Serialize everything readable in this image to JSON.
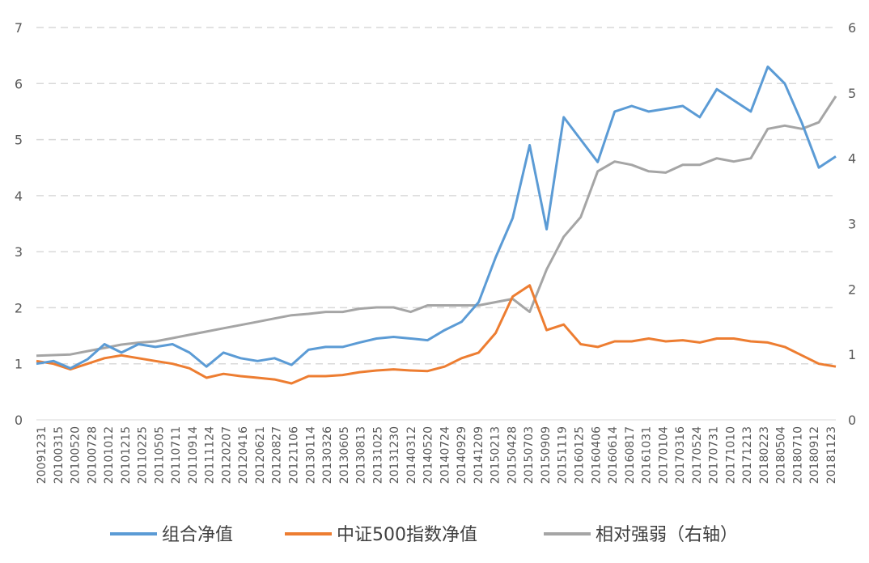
{
  "chart_data": {
    "type": "line",
    "title": "",
    "xlabel": "",
    "ylabel": "",
    "y_left": {
      "min": 0,
      "max": 7,
      "ticks": [
        "0",
        "1",
        "2",
        "3",
        "4",
        "5",
        "6",
        "7"
      ]
    },
    "y_right": {
      "min": 0,
      "max": 6,
      "ticks": [
        "0",
        "1",
        "2",
        "3",
        "4",
        "5",
        "6"
      ]
    },
    "grid": "horizontal dashed",
    "legend_position": "bottom",
    "x_tick_labels": [
      "20091231",
      "20100315",
      "20100520",
      "20100728",
      "20101012",
      "20101215",
      "20110225",
      "20110505",
      "20110711",
      "20110914",
      "20111124",
      "20120207",
      "20120416",
      "20120621",
      "20120827",
      "20121106",
      "20130114",
      "20130326",
      "20130605",
      "20130813",
      "20131025",
      "20131230",
      "20140312",
      "20140520",
      "20140724",
      "20140929",
      "20141209",
      "20150213",
      "20150428",
      "20150703",
      "20150909",
      "20151119",
      "20160125",
      "20160406",
      "20160614",
      "20160817",
      "20161031",
      "20170104",
      "20170316",
      "20170524",
      "20170731",
      "20171010",
      "20171213",
      "20180223",
      "20180504",
      "20180710",
      "20180912",
      "20181123"
    ],
    "series": [
      {
        "name": "组合净值",
        "axis": "left",
        "color": "#5B9BD5",
        "values": [
          1.0,
          1.05,
          0.92,
          1.08,
          1.35,
          1.2,
          1.35,
          1.3,
          1.35,
          1.2,
          0.95,
          1.2,
          1.1,
          1.05,
          1.1,
          0.98,
          1.25,
          1.3,
          1.3,
          1.38,
          1.45,
          1.48,
          1.45,
          1.42,
          1.6,
          1.75,
          2.1,
          2.9,
          3.6,
          4.9,
          3.4,
          5.4,
          5.0,
          4.6,
          5.5,
          5.6,
          5.5,
          5.55,
          5.6,
          5.4,
          5.9,
          5.7,
          5.5,
          6.3,
          6.0,
          5.3,
          4.5,
          4.7
        ]
      },
      {
        "name": "中证500指数净值",
        "axis": "left",
        "color": "#ED7D31",
        "values": [
          1.05,
          1.0,
          0.9,
          1.0,
          1.1,
          1.15,
          1.1,
          1.05,
          1.0,
          0.92,
          0.75,
          0.82,
          0.78,
          0.75,
          0.72,
          0.65,
          0.78,
          0.78,
          0.8,
          0.85,
          0.88,
          0.9,
          0.88,
          0.87,
          0.95,
          1.1,
          1.2,
          1.55,
          2.2,
          2.4,
          1.6,
          1.7,
          1.35,
          1.3,
          1.4,
          1.4,
          1.45,
          1.4,
          1.42,
          1.38,
          1.45,
          1.45,
          1.4,
          1.38,
          1.3,
          1.15,
          1.0,
          0.95
        ]
      },
      {
        "name": "相对强弱（右轴）",
        "axis": "right",
        "color": "#A5A5A5",
        "values": [
          0.98,
          0.99,
          1.0,
          1.05,
          1.1,
          1.15,
          1.18,
          1.2,
          1.25,
          1.3,
          1.35,
          1.4,
          1.45,
          1.5,
          1.55,
          1.6,
          1.62,
          1.65,
          1.65,
          1.7,
          1.72,
          1.72,
          1.65,
          1.75,
          1.75,
          1.75,
          1.75,
          1.8,
          1.85,
          1.65,
          2.3,
          2.8,
          3.1,
          3.8,
          3.95,
          3.9,
          3.8,
          3.78,
          3.9,
          3.9,
          4.0,
          3.95,
          4.0,
          4.45,
          4.5,
          4.45,
          4.55,
          4.95
        ]
      }
    ]
  }
}
